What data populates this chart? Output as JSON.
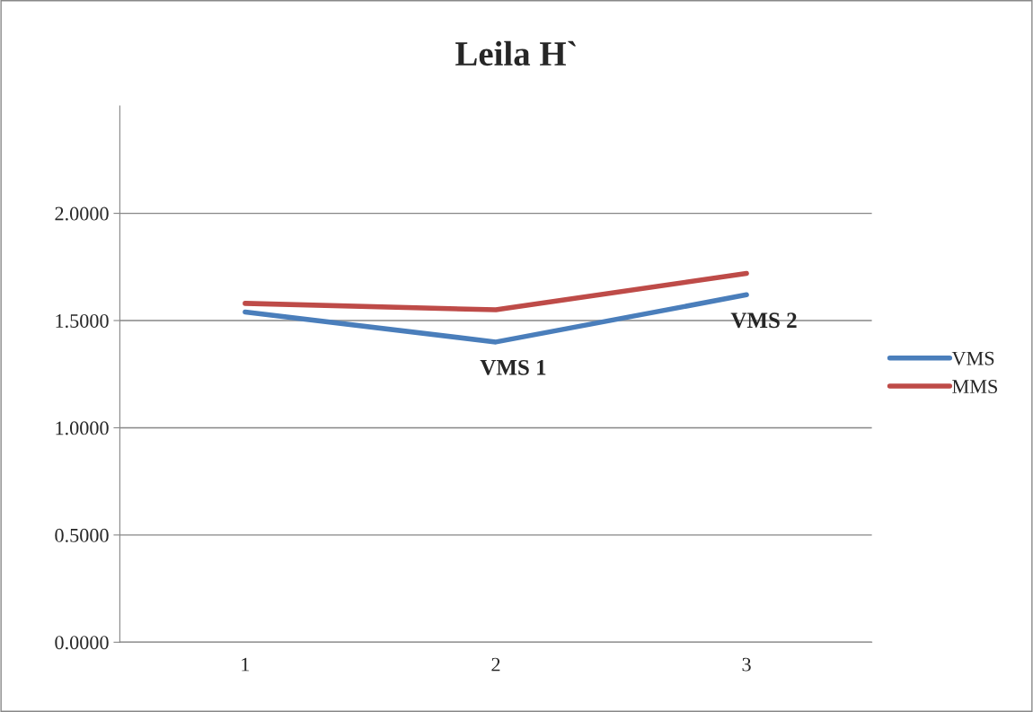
{
  "chart_data": {
    "type": "line",
    "title": "Leila H`",
    "categories": [
      "1",
      "2",
      "3"
    ],
    "series": [
      {
        "name": "VMS",
        "color": "#4a7ebb",
        "values": [
          1.54,
          1.4,
          1.62
        ]
      },
      {
        "name": "MMS",
        "color": "#be4b48",
        "values": [
          1.58,
          1.55,
          1.72
        ]
      }
    ],
    "ylim": [
      0,
      2.5
    ],
    "yticks": [
      {
        "value": 0,
        "label": "0.0000"
      },
      {
        "value": 0.5,
        "label": "0.5000"
      },
      {
        "value": 1,
        "label": "1.0000"
      },
      {
        "value": 1.5,
        "label": "1.5000"
      },
      {
        "value": 2,
        "label": "2.0000"
      }
    ],
    "annotations": [
      {
        "text": "VMS 1",
        "x": "2",
        "y": 1.4
      },
      {
        "text": "VMS 2",
        "x": "3",
        "y": 1.62
      }
    ],
    "grid": "y",
    "legend": "right",
    "marker": "none",
    "line_style": "solid"
  }
}
